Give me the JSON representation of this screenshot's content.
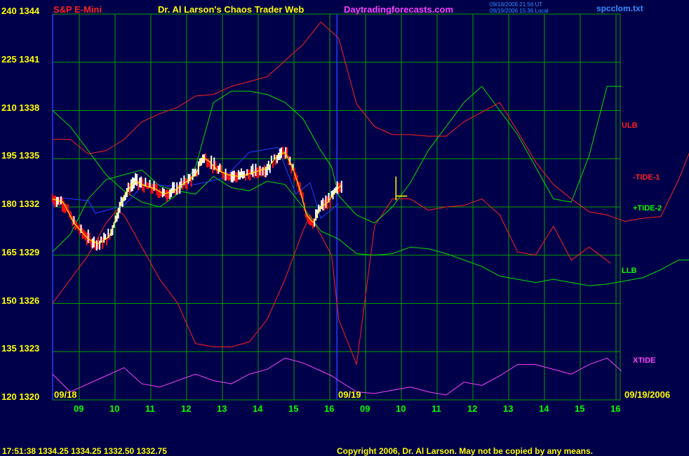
{
  "header": {
    "instrument": "S&P E-Mini",
    "site_title": "Dr. Al Larson's Chaos Trader Web",
    "site_url": "Daytradingforecasts.com",
    "timestamp_line1": "09/18/2006 21:56 UT",
    "timestamp_line2": "09/19/2006 15:36 Local",
    "file": "spcclom.txt"
  },
  "footer": {
    "quote": "17:51:38  1334.25 1334.25 1332.50 1332.75",
    "copyright": "Copyright 2006, Dr. Al Larson. May not be copied by any means."
  },
  "colors": {
    "background": "#00004a",
    "grid": "#00a000",
    "axis_labels": "#ffff00",
    "time_labels": "#00ff00",
    "tide1": "#ff2020",
    "tide2": "#00e000",
    "xtide": "#ff40ff",
    "up_bars": "#ffffff",
    "down_bars": "#ff1010",
    "average": "#ffff00",
    "blue_line": "#2040ff",
    "site_url": "#ff40ff",
    "file": "#3090ff",
    "copyright": "#ffff00"
  },
  "chart_data": {
    "type": "line",
    "title": "S&P E-Mini",
    "y_axis": {
      "left_scale": [
        "240",
        "225",
        "210",
        "195",
        "180",
        "165",
        "150",
        "135",
        "120"
      ],
      "right_scale": [
        "1344",
        "1341",
        "1338",
        "1335",
        "1332",
        "1329",
        "1326",
        "1323",
        "1320"
      ],
      "price_range": [
        1320,
        1344
      ]
    },
    "x_axis": {
      "hours": [
        "09",
        "10",
        "11",
        "12",
        "13",
        "14",
        "15",
        "16",
        "09",
        "10",
        "11",
        "12",
        "13",
        "14",
        "15",
        "16"
      ],
      "date_labels": [
        "09/18",
        "09/19",
        "09/19/2006"
      ]
    },
    "series_labels": {
      "ulb": "ULB",
      "tide1": "-TIDE-1",
      "tide2": "+TIDE-2",
      "llb": "LLB",
      "xtide": "XTIDE"
    },
    "series": [
      {
        "name": "-TIDE-1",
        "color": "#ff2020",
        "x": [
          0,
          0.5,
          1,
          1.5,
          1.8,
          2,
          2.5,
          3,
          3.5,
          4,
          4.5,
          5,
          5.5,
          6,
          6.5,
          7,
          7.2,
          7.8,
          8,
          8.5,
          9,
          9.5,
          10,
          10.5,
          11,
          11.5,
          12,
          12.5,
          13,
          13.5,
          14,
          14.5,
          15,
          15.6
        ],
        "y": [
          1326,
          1327.5,
          1329,
          1331,
          1331.8,
          1331.5,
          1329.5,
          1327.5,
          1326,
          1323.5,
          1323.3,
          1323.3,
          1323.6,
          1325,
          1327.5,
          1330.5,
          1331.5,
          1329,
          1325,
          1322.2,
          1330.8,
          1332.5,
          1332.5,
          1331.8,
          1332,
          1332.1,
          1332.5,
          1331.5,
          1329.2,
          1329,
          1330.8,
          1328.7,
          1329.5,
          1328.5
        ]
      },
      {
        "name": "+TIDE-2",
        "color": "#00e000",
        "x": [
          0,
          0.5,
          1,
          1.5,
          2,
          2.5,
          3,
          3.5,
          4,
          4.5,
          5,
          5.5,
          6,
          6.5,
          7,
          7.5,
          7.8,
          8,
          8.5,
          9,
          9.5,
          10,
          10.5,
          11,
          11.5,
          12,
          12.5,
          13,
          13.5,
          14,
          14.5,
          15,
          15.5,
          15.9
        ],
        "y": [
          1338,
          1337,
          1335.5,
          1334,
          1333,
          1332.3,
          1332,
          1332.8,
          1334.5,
          1338.5,
          1339.2,
          1339.2,
          1339,
          1338.5,
          1337.5,
          1335.5,
          1334.5,
          1332.7,
          1331.5,
          1331,
          1332,
          1333.5,
          1335.5,
          1337,
          1338.5,
          1339.5,
          1338,
          1336.5,
          1334.5,
          1332.5,
          1332.3,
          1335.2,
          1339.5,
          1339.5
        ]
      },
      {
        "name": "ULB",
        "color": "#ff2020",
        "x": [
          0,
          0.5,
          1,
          1.5,
          2,
          2.5,
          3,
          3.5,
          4,
          4.5,
          5,
          5.5,
          6,
          6.5,
          7,
          7.5,
          8,
          8.5,
          9,
          9.5,
          10,
          10.5,
          11,
          11.5,
          12,
          12.5,
          13,
          13.5,
          14,
          14.5,
          15,
          15.5,
          16,
          16.5,
          17,
          17.5,
          18,
          18.5,
          19,
          19.5,
          20,
          20.5,
          21,
          21.5,
          22,
          22.5,
          23,
          23.5,
          24
        ],
        "y": [
          1336.2,
          1336.2,
          1335.3,
          1335.5,
          1336.2,
          1337.3,
          1337.8,
          1338.2,
          1338.9,
          1339,
          1339.5,
          1339.8,
          1340.1,
          1341.1,
          1342.1,
          1343.5,
          1342.5,
          1338.4,
          1337,
          1336.5,
          1336.5,
          1336.4,
          1336.4,
          1337.3,
          1337.9,
          1338.5,
          1336.7,
          1334.8,
          1333.4,
          1332.5,
          1331.7,
          1331.5,
          1331.1,
          1331.3,
          1331.4,
          1333.7,
          1336.5,
          1337.1,
          1337.8,
          1337.7,
          1337.4,
          1335.4,
          1334.5,
          1335.5,
          1335.3,
          1335.3,
          1334.7,
          1334.5,
          1330.3
        ]
      },
      {
        "name": "LLB",
        "color": "#00e000",
        "x": [
          0,
          0.5,
          1,
          1.5,
          2,
          2.5,
          3,
          3.5,
          4,
          4.5,
          5,
          5.5,
          6,
          6.5,
          7,
          7.5,
          8,
          8.5,
          9,
          9.5,
          10,
          10.5,
          11,
          11.5,
          12,
          12.5,
          13,
          13.5,
          14,
          14.5,
          15,
          15.5,
          16,
          16.5,
          17,
          17.5,
          18,
          18.5,
          19,
          19.5,
          20,
          20.5,
          21,
          21.5,
          22,
          22.5,
          23,
          23.5,
          24
        ],
        "y": [
          1329.2,
          1330.3,
          1332.5,
          1333.7,
          1334,
          1334.3,
          1333.3,
          1333,
          1332.8,
          1333.9,
          1333.2,
          1333,
          1333.6,
          1333.4,
          1332,
          1330.5,
          1330,
          1329.1,
          1329,
          1329.1,
          1329.5,
          1329.4,
          1329.1,
          1328.7,
          1328.3,
          1327.7,
          1327.5,
          1327.3,
          1327.5,
          1327.3,
          1327.1,
          1327.2,
          1327.4,
          1327.6,
          1328.1,
          1328.7,
          1328.7,
          1328.4,
          1328.5,
          1328.4,
          1328.1,
          1327.9,
          1327.7,
          1327.5,
          1327.2,
          1326.8,
          1326.5,
          1326.7,
          1326.5
        ]
      },
      {
        "name": "XTIDE",
        "color": "#ff40ff",
        "x": [
          0,
          0.5,
          1,
          1.5,
          2,
          2.5,
          3,
          3.5,
          4,
          4.5,
          5,
          5.5,
          6,
          6.5,
          7,
          7.5,
          7.8,
          8,
          8.5,
          9,
          9.5,
          10,
          10.5,
          11,
          11.5,
          12,
          12.5,
          13,
          13.5,
          14,
          14.5,
          15,
          15.5,
          15.9
        ],
        "y": [
          1321.6,
          1320.5,
          1321,
          1321.5,
          1322,
          1321,
          1320.8,
          1321.2,
          1321.6,
          1321.2,
          1321,
          1321.6,
          1321.9,
          1322.6,
          1322.3,
          1321.8,
          1321.5,
          1321.2,
          1320.5,
          1320.4,
          1320.6,
          1320.8,
          1320.5,
          1320.3,
          1321.1,
          1320.9,
          1321.5,
          1322.2,
          1322.2,
          1321.9,
          1321.6,
          1322.2,
          1322.6,
          1321.8
        ]
      },
      {
        "name": "blue",
        "color": "#2040ff",
        "x": [
          0,
          1,
          1.2,
          2,
          2.6,
          3.2,
          4,
          4.8,
          5.5,
          6.3,
          6.8,
          7.2,
          7.5,
          8
        ],
        "y": [
          1332.6,
          1332.4,
          1331.6,
          1332.1,
          1333.5,
          1333.3,
          1333.4,
          1333.8,
          1335.4,
          1335.7,
          1332.8,
          1333.5,
          1331.3,
          1332.2
        ]
      }
    ],
    "price_bars": {
      "x_start": 0,
      "x_end": 8.1,
      "up_color": "#ffffff",
      "down_color": "#ff1010",
      "path": [
        [
          0,
          1332.5
        ],
        [
          0.3,
          1332.3
        ],
        [
          0.6,
          1331
        ],
        [
          1,
          1330
        ],
        [
          1.3,
          1329.7
        ],
        [
          1.6,
          1330.2
        ],
        [
          1.8,
          1331.5
        ],
        [
          2,
          1332.7
        ],
        [
          2.3,
          1333.6
        ],
        [
          2.6,
          1333.3
        ],
        [
          2.9,
          1333.1
        ],
        [
          3.1,
          1332.8
        ],
        [
          3.4,
          1333
        ],
        [
          3.7,
          1333.5
        ],
        [
          4,
          1334
        ],
        [
          4.2,
          1335.1
        ],
        [
          4.4,
          1334.8
        ],
        [
          4.6,
          1334.3
        ],
        [
          4.9,
          1334
        ],
        [
          5.2,
          1333.9
        ],
        [
          5.4,
          1334
        ],
        [
          5.7,
          1334.2
        ],
        [
          6,
          1334.4
        ],
        [
          6.3,
          1335.2
        ],
        [
          6.5,
          1335.4
        ],
        [
          6.7,
          1334.5
        ],
        [
          6.9,
          1333.2
        ],
        [
          7.1,
          1331.5
        ],
        [
          7.3,
          1331
        ],
        [
          7.5,
          1332
        ],
        [
          7.7,
          1332.3
        ],
        [
          8,
          1333.2
        ],
        [
          8.1,
          1333.4
        ]
      ]
    },
    "trade_marker": {
      "x": 9.6,
      "y": 1332.5,
      "color": "#ffff00"
    }
  }
}
